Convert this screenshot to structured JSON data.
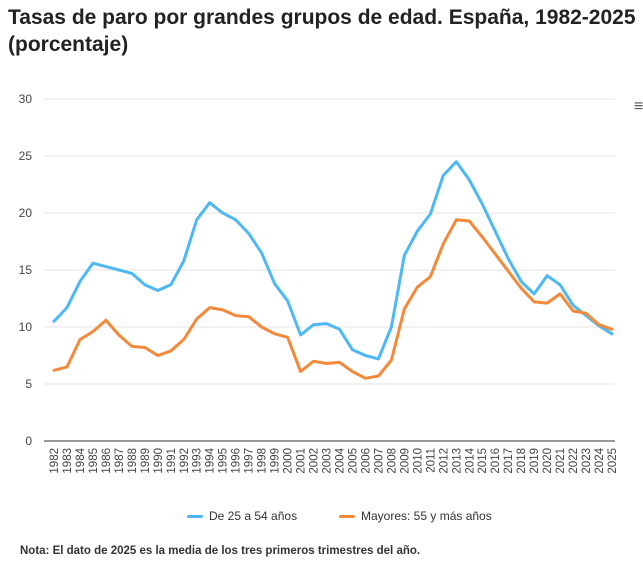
{
  "chart_data": {
    "type": "line",
    "title": "Tasas de paro por grandes grupos de edad. España, 1982-2025 (porcentaje)",
    "xlabel": "",
    "ylabel": "",
    "ylim": [
      0,
      30
    ],
    "yticks": [
      "0",
      "5",
      "10",
      "15",
      "20",
      "25",
      "30"
    ],
    "grid": true,
    "legend_position": "bottom",
    "x": [
      "1982",
      "1983",
      "1984",
      "1985",
      "1986",
      "1987",
      "1988",
      "1989",
      "1990",
      "1991",
      "1992",
      "1993",
      "1994",
      "1995",
      "1996",
      "1997",
      "1998",
      "1999",
      "2000",
      "2001",
      "2002",
      "2003",
      "2004",
      "2005",
      "2006",
      "2007",
      "2008",
      "2009",
      "2010",
      "2011",
      "2012",
      "2013",
      "2014",
      "2015",
      "2016",
      "2017",
      "2018",
      "2019",
      "2020",
      "2021",
      "2022",
      "2023",
      "2024",
      "2025"
    ],
    "series": [
      {
        "name": "De 25 a 54 años",
        "color": "#4db8f5",
        "values": [
          10.5,
          11.7,
          14.0,
          15.6,
          15.3,
          15.0,
          14.7,
          13.7,
          13.2,
          13.7,
          15.8,
          19.4,
          20.9,
          20.0,
          19.4,
          18.2,
          16.5,
          13.8,
          12.3,
          9.3,
          10.2,
          10.3,
          9.8,
          8.0,
          7.5,
          7.2,
          10.0,
          16.3,
          18.4,
          19.9,
          23.3,
          24.5,
          22.9,
          20.8,
          18.4,
          16.0,
          14.0,
          12.9,
          14.5,
          13.7,
          11.9,
          11.0,
          10.1,
          9.4
        ]
      },
      {
        "name": "Mayores: 55 y más años",
        "color": "#f5893a",
        "values": [
          6.2,
          6.5,
          8.9,
          9.6,
          10.6,
          9.3,
          8.3,
          8.2,
          7.5,
          7.9,
          8.9,
          10.7,
          11.7,
          11.5,
          11.0,
          10.9,
          10.0,
          9.4,
          9.1,
          6.1,
          7.0,
          6.8,
          6.9,
          6.1,
          5.5,
          5.7,
          7.1,
          11.6,
          13.5,
          14.4,
          17.3,
          19.4,
          19.3,
          17.9,
          16.4,
          14.9,
          13.4,
          12.2,
          12.1,
          12.9,
          11.4,
          11.2,
          10.2,
          9.8
        ]
      }
    ],
    "note": "Nota: El dato de 2025 es la media de los tres primeros trimestres del año."
  },
  "menu_icon": "hamburger-menu-icon"
}
